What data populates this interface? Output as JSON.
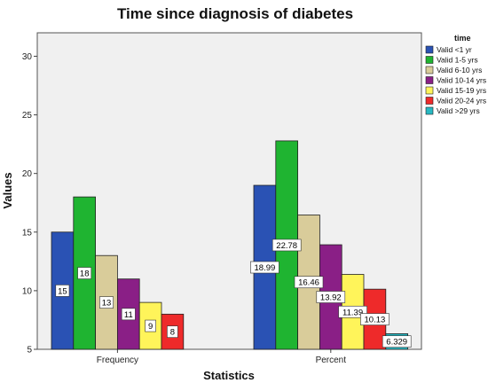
{
  "chart_data": {
    "type": "bar",
    "title": "Time since diagnosis of diabetes",
    "xlabel": "Statistics",
    "ylabel": "Values",
    "categories": [
      "Frequency",
      "Percent"
    ],
    "ylim": [
      5,
      32
    ],
    "yticks": [
      5,
      10,
      15,
      20,
      25,
      30
    ],
    "legend_title": "time",
    "legend_position": "top-right",
    "grid": false,
    "series": [
      {
        "name": "Valid <1 yr",
        "color": "#2a52b4",
        "values": [
          15,
          18.99
        ],
        "labels": [
          "15",
          "18.99"
        ]
      },
      {
        "name": "Valid 1-5 yrs",
        "color": "#1fb431",
        "values": [
          18,
          22.78
        ],
        "labels": [
          "18",
          "22.78"
        ]
      },
      {
        "name": "Valid 6-10 yrs",
        "color": "#d9cc9a",
        "values": [
          13,
          16.46
        ],
        "labels": [
          "13",
          "16.46"
        ]
      },
      {
        "name": "Valid 10-14 yrs",
        "color": "#8a1f86",
        "values": [
          11,
          13.92
        ],
        "labels": [
          "11",
          "13.92"
        ]
      },
      {
        "name": "Valid 15-19 yrs",
        "color": "#fff45a",
        "values": [
          9,
          11.39
        ],
        "labels": [
          "9",
          "11.39"
        ]
      },
      {
        "name": "Valid 20-24 yrs",
        "color": "#ee2a2a",
        "values": [
          8,
          10.13
        ],
        "labels": [
          "8",
          "10.13"
        ]
      },
      {
        "name": "Valid >29 yrs",
        "color": "#27b8c2",
        "values": [
          null,
          6.329
        ],
        "labels": [
          "",
          "6.329"
        ]
      }
    ],
    "plot_background": "#f0f0f0"
  }
}
